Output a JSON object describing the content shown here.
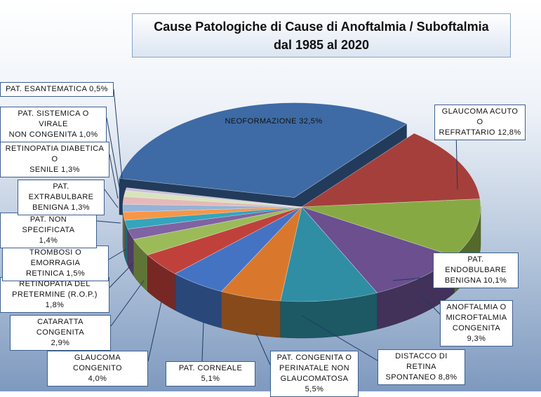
{
  "chart_data": {
    "type": "pie",
    "title_line1": "Cause Patologiche di Cause di Anoftalmia / Suboftalmia",
    "title_line2": "dal 1985 al 2020",
    "slices": [
      {
        "label": "NEOFORMAZIONE 32,5%",
        "value": 32.5,
        "color": "#3e6ba5"
      },
      {
        "label": "GLAUCOMA ACUTO O\nREFRATTARIO 12,8%",
        "value": 12.8,
        "color": "#a53f3c"
      },
      {
        "label": "PAT. ENDOBULBARE\nBENIGNA 10,1%",
        "value": 10.1,
        "color": "#87a944"
      },
      {
        "label": "ANOFTALMIA O\nMICROFTALMIA\nCONGENITA 9,3%",
        "value": 9.3,
        "color": "#6b4f8f"
      },
      {
        "label": "DISTACCO DI RETINA\nSPONTANEO 8,8%",
        "value": 8.8,
        "color": "#2f8ea3"
      },
      {
        "label": "PAT. CONGENITA O\nPERINATALE NON\nGLAUCOMATOSA 5,5%",
        "value": 5.5,
        "color": "#d9782c"
      },
      {
        "label": "PAT. CORNEALE 5,1%",
        "value": 5.1,
        "color": "#4473c4"
      },
      {
        "label": "GLAUCOMA CONGENITO\n4,0%",
        "value": 4.0,
        "color": "#c0413b"
      },
      {
        "label": "CATARATTA CONGENITA\n2,9%",
        "value": 2.9,
        "color": "#9bbb59"
      },
      {
        "label": "RETINOPATIA DEL\nPRETERMINE (R.O.P.) 1,8%",
        "value": 1.8,
        "color": "#7f63a2"
      },
      {
        "label": "TROMBOSI O EMORRAGIA\nRETINICA 1,5%",
        "value": 1.5,
        "color": "#34a5bd"
      },
      {
        "label": "PAT. NON SPECIFICATA\n1,4%",
        "value": 1.4,
        "color": "#f79646"
      },
      {
        "label": "PAT. EXTRABULBARE\nBENIGNA 1,3%",
        "value": 1.3,
        "color": "#95b3d7"
      },
      {
        "label": "RETINOPATIA DIABETICA O\nSENILE 1,3%",
        "value": 1.3,
        "color": "#e6b9b8"
      },
      {
        "label": "PAT. SISTEMICA O VIRALE\nNON CONGENITA 1,0%",
        "value": 1.0,
        "color": "#d7e4bc"
      },
      {
        "label": "PAT. ESANTEMATICA 0,5%",
        "value": 0.5,
        "color": "#ccc0da"
      }
    ]
  }
}
